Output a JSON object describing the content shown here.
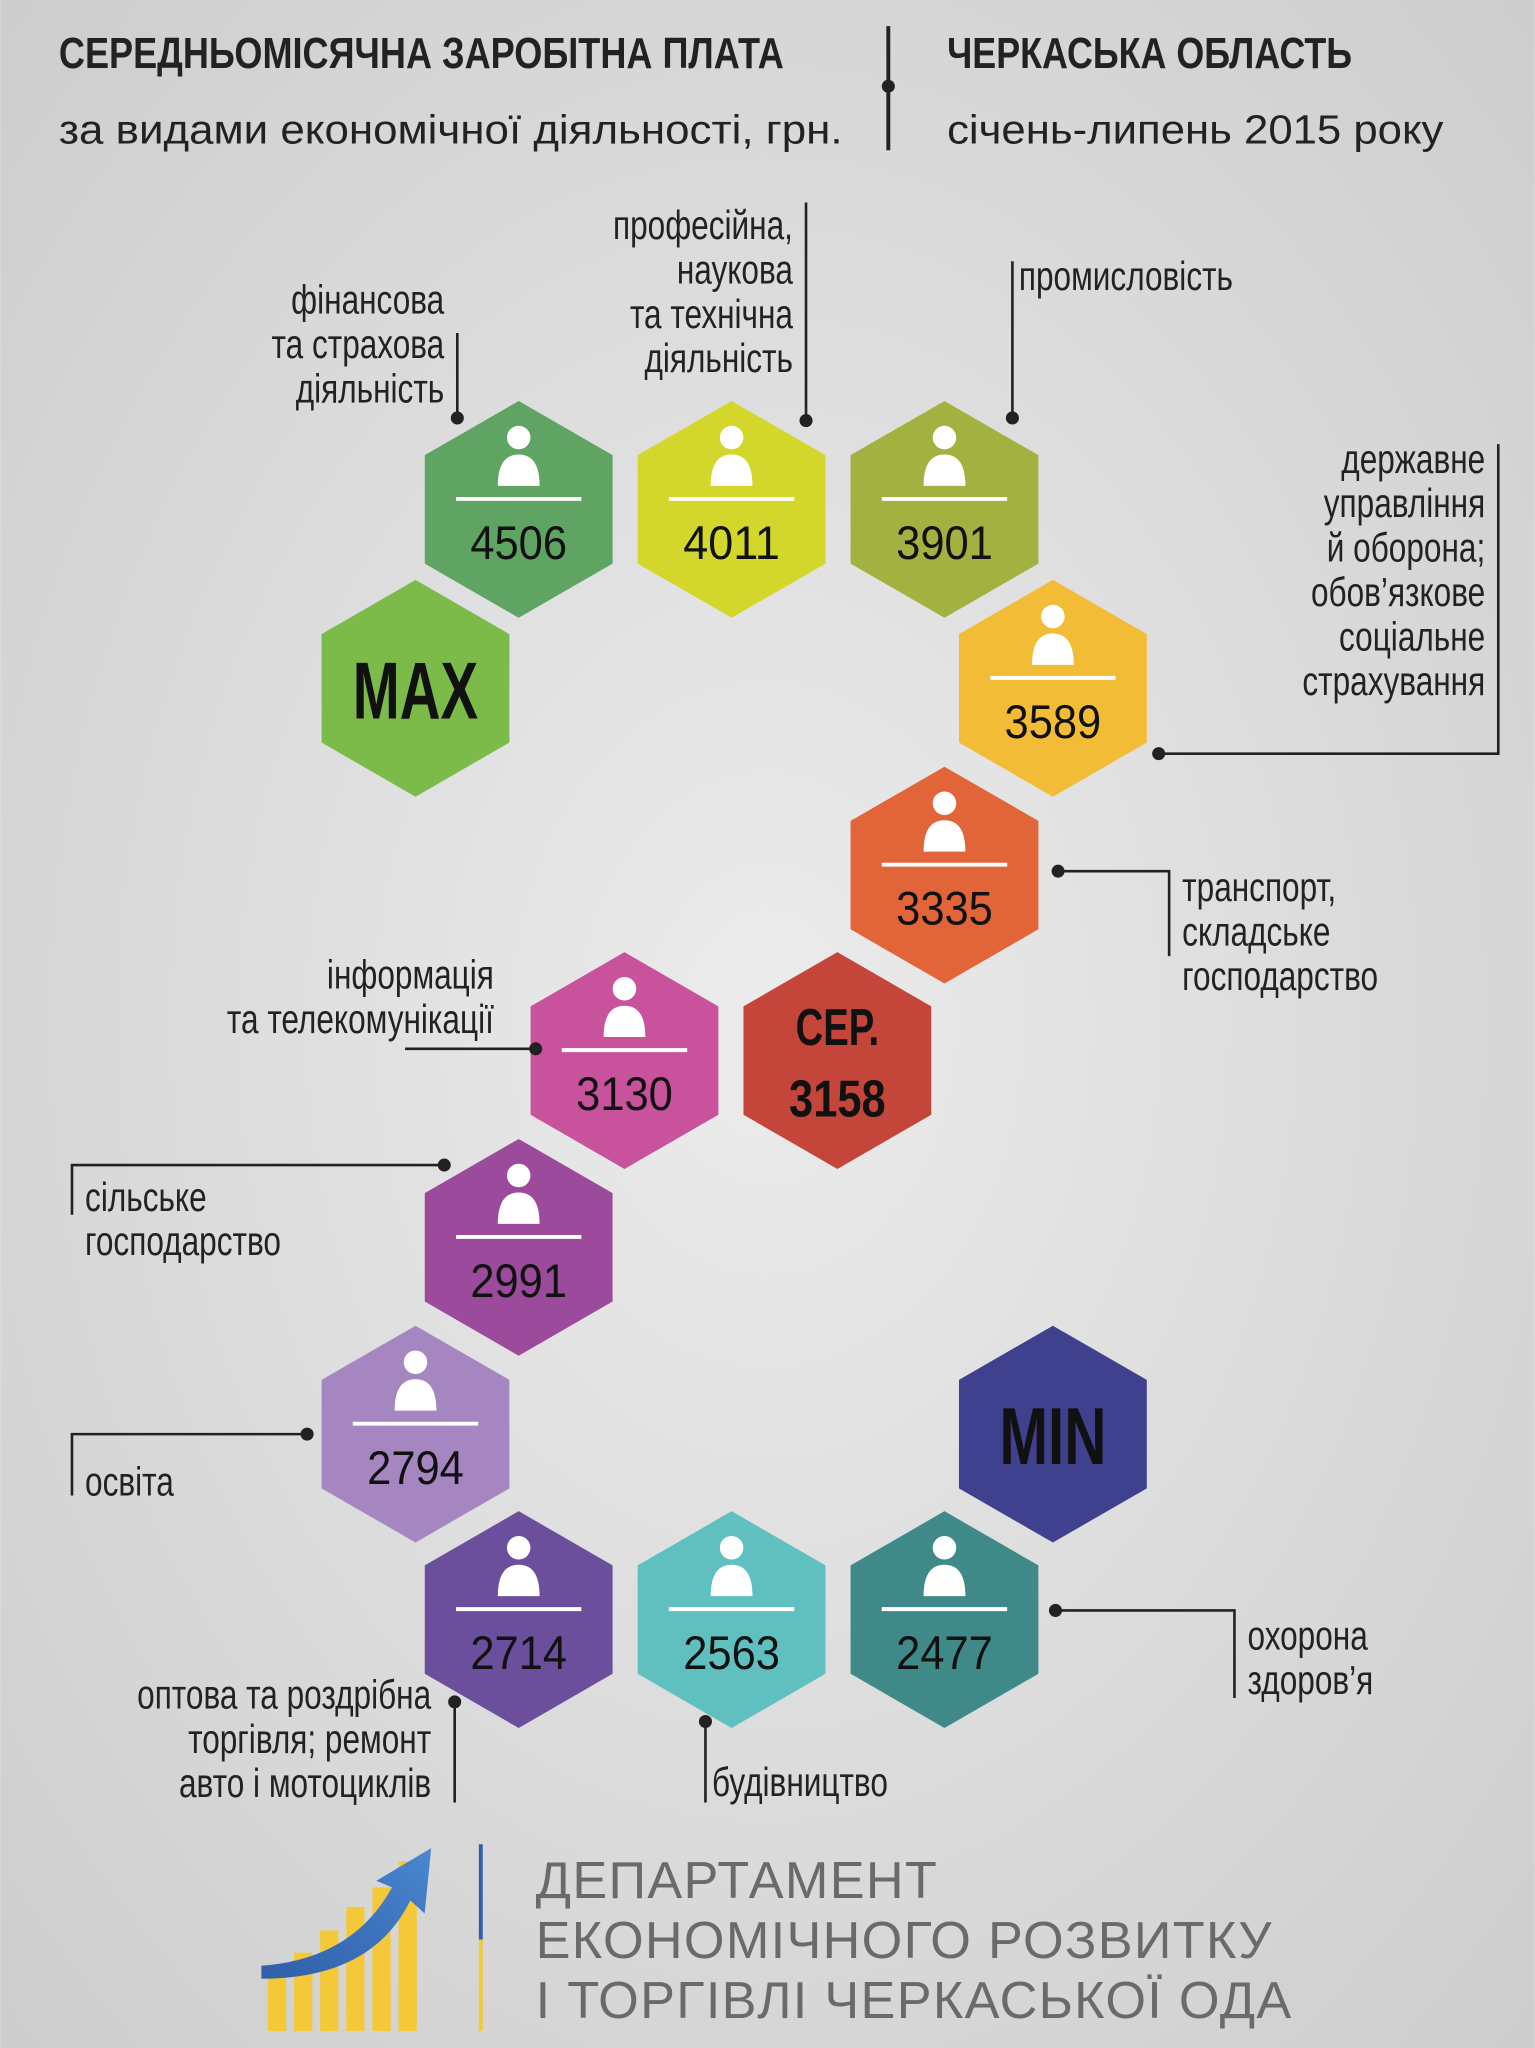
{
  "header": {
    "title_left": "СЕРЕДНЬОМІСЯЧНА ЗАРОБІТНА ПЛАТА",
    "subtitle_left": "за видами економічної діяльності, грн.",
    "title_right": "ЧЕРКАСЬКА ОБЛАСТЬ",
    "subtitle_right": "січень-липень 2015 року"
  },
  "items": [
    {
      "label": [
        "фінансова",
        "та страхова",
        "діяльність"
      ],
      "value": 4506,
      "color": "#5fa463"
    },
    {
      "label": [
        "професійна,",
        "наукова",
        "та технічна",
        "діяльність"
      ],
      "value": 4011,
      "color": "#d3d72c"
    },
    {
      "label": [
        "промисловість"
      ],
      "value": 3901,
      "color": "#a2b13f"
    },
    {
      "label": [
        "державне",
        "управління",
        "й оборона;",
        "обов’язкове",
        "соціальне",
        "страхування"
      ],
      "value": 3589,
      "color": "#f2bc36"
    },
    {
      "label": [
        "транспорт,",
        "складське",
        "господарство"
      ],
      "value": 3335,
      "color": "#e2653a"
    },
    {
      "label": [
        "інформація",
        "та телекомунікації"
      ],
      "value": 3130,
      "color": "#c9529d"
    },
    {
      "label": [
        "сільське",
        "господарство"
      ],
      "value": 2991,
      "color": "#9c4b9c"
    },
    {
      "label": [
        "освіта"
      ],
      "value": 2794,
      "color": "#a686c1"
    },
    {
      "label": [
        "оптова та роздрібна",
        "торгівля; ремонт",
        "авто і мотоциклів"
      ],
      "value": 2714,
      "color": "#6c4f9c"
    },
    {
      "label": [
        "будівництво"
      ],
      "value": 2563,
      "color": "#5fc0bf"
    },
    {
      "label": [
        "охорона",
        "здоров’я"
      ],
      "value": 2477,
      "color": "#3f8a89"
    }
  ],
  "max": {
    "label": "MAX",
    "color": "#7cba4a"
  },
  "average": {
    "label": "СЕР.",
    "value": 3158,
    "color": "#c4463b"
  },
  "min": {
    "label": "MIN",
    "color": "#3f408e"
  },
  "footer": {
    "lines": [
      "ДЕПАРТАМЕНТ",
      "ЕКОНОМІЧНОГО РОЗВИТКУ",
      "І ТОРГІВЛІ ЧЕРКАСЬКОЇ ОДА"
    ]
  }
}
